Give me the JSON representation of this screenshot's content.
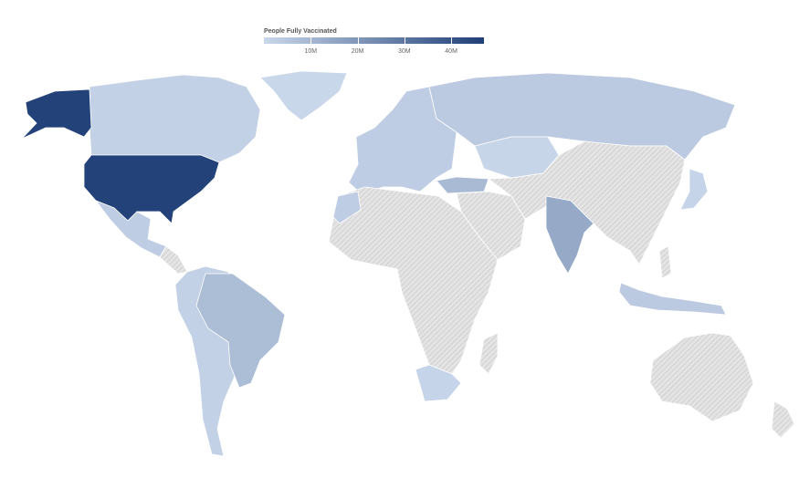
{
  "legend": {
    "title": "People Fully Vaccinated",
    "domain_millions": [
      0,
      47
    ],
    "ticks": [
      {
        "value": 10,
        "label": "10M"
      },
      {
        "value": 20,
        "label": "20M"
      },
      {
        "value": 30,
        "label": "30M"
      },
      {
        "value": 40,
        "label": "40M"
      }
    ],
    "color_low": "#c9d7ea",
    "color_high": "#1f3f77",
    "no_data_pattern": "diagonal-hatch-gray"
  },
  "regions_millions": {
    "usa": 46,
    "alaska": 46,
    "canada": 2,
    "greenland": 0.1,
    "mexico": 3,
    "central_america": null,
    "south_america": 2,
    "brazil": 8,
    "europe": 3,
    "russia": 4,
    "turkey": 9,
    "kazakhstan": 0.5,
    "asia": null,
    "india": 14,
    "africa": null,
    "south_africa": 1,
    "morocco": 3,
    "japan": 1,
    "indonesia": 4,
    "philippines": null,
    "australia": null,
    "new_zealand": null,
    "madagascar": null,
    "middle_east": null
  }
}
